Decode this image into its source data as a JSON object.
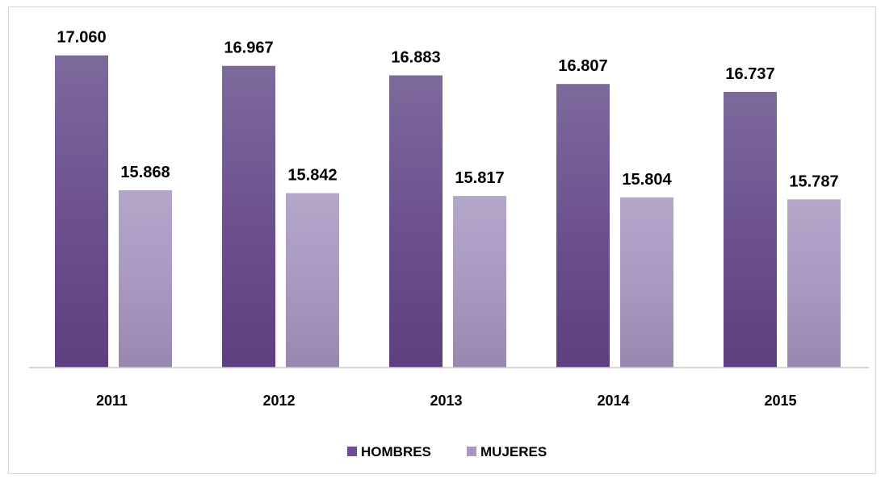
{
  "chart_data": {
    "type": "bar",
    "categories": [
      "2011",
      "2012",
      "2013",
      "2014",
      "2015"
    ],
    "series": [
      {
        "name": "HOMBRES",
        "values": [
          17060,
          16967,
          16883,
          16807,
          16737
        ],
        "labels": [
          "17.060",
          "16.967",
          "16.883",
          "16.807",
          "16.737"
        ],
        "color": "#6b4f8e"
      },
      {
        "name": "MUJERES",
        "values": [
          15868,
          15842,
          15817,
          15804,
          15787
        ],
        "labels": [
          "15.868",
          "15.842",
          "15.817",
          "15.804",
          "15.787"
        ],
        "color": "#a898bf"
      }
    ],
    "title": "",
    "xlabel": "",
    "ylabel": "",
    "ylim": [
      14300,
      17300
    ],
    "grid": false,
    "legend": "bottom-center"
  }
}
